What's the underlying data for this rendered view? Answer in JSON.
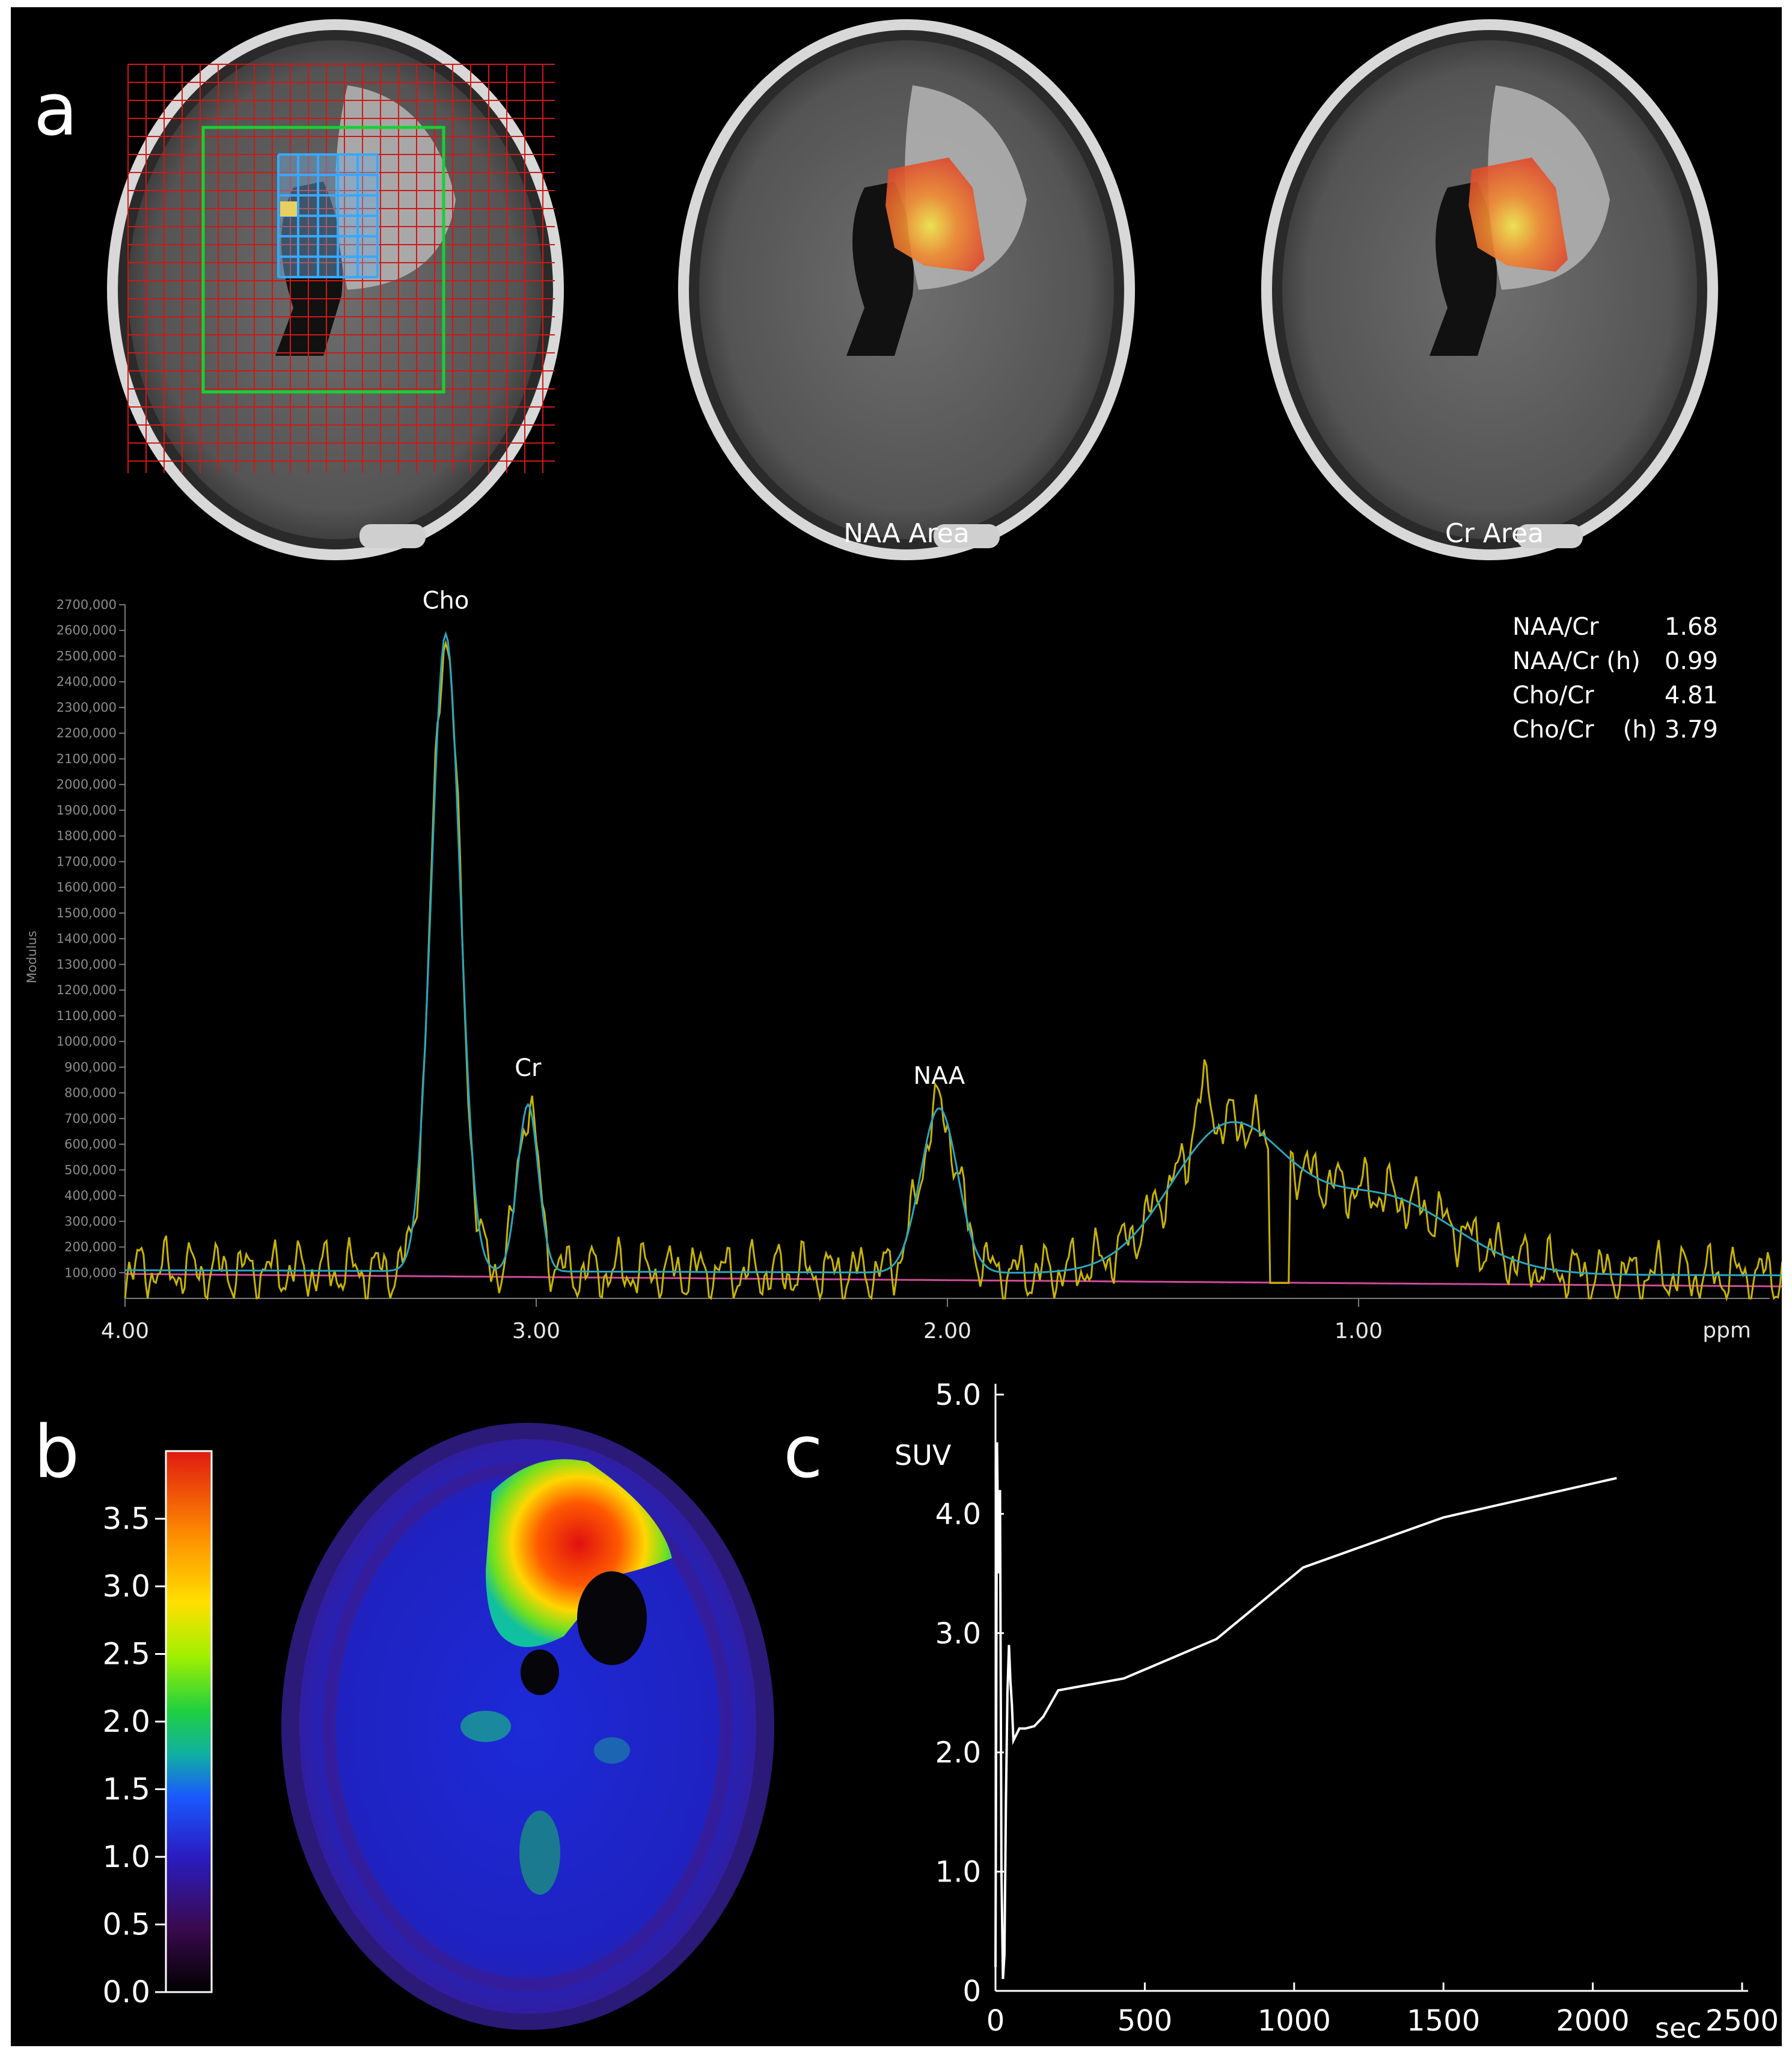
{
  "panel_labels": {
    "a": "a",
    "b": "b",
    "c": "c"
  },
  "images": {
    "voxel_grid_mri": {},
    "naa_map": {
      "caption": "NAA Area"
    },
    "cr_map": {
      "caption": "Cr Area"
    },
    "pet_scan": {}
  },
  "chart_data": [
    {
      "type": "line",
      "id": "mrs-spectrum",
      "ylabel": "Modulus",
      "xunit": "ppm",
      "xlim": [
        4.0,
        0.0
      ],
      "ylim": [
        0,
        2700000
      ],
      "x_ticks": [
        "4.00",
        "3.00",
        "2.00",
        "1.00"
      ],
      "y_ticks": [
        "100,000",
        "200,000",
        "300,000",
        "400,000",
        "500,000",
        "600,000",
        "700,000",
        "800,000",
        "900,000",
        "1000,000",
        "1100,000",
        "1200,000",
        "1300,000",
        "1400,000",
        "1500,000",
        "1600,000",
        "1700,000",
        "1800,000",
        "1900,000",
        "2000,000",
        "2100,000",
        "2200,000",
        "2300,000",
        "2400,000",
        "2500,000",
        "2600,000",
        "2700,000"
      ],
      "peaks": [
        {
          "label": "Cho",
          "ppm": 3.22,
          "value": 2580000
        },
        {
          "label": "Cr",
          "ppm": 3.02,
          "value": 760000
        },
        {
          "label": "NAA",
          "ppm": 2.02,
          "value": 730000
        }
      ],
      "ratios": [
        {
          "label": "NAA/Cr",
          "value": "1.68"
        },
        {
          "label": "NAA/Cr (h)",
          "value": "0.99"
        },
        {
          "label": "Cho/Cr",
          "value": "4.81"
        },
        {
          "label": "Cho/Cr",
          "value": "(h) 3.79"
        }
      ],
      "colors": {
        "measured": "#c8b400",
        "fit": "#2aa6c0",
        "baseline": "#d04a9a"
      }
    },
    {
      "type": "line",
      "id": "suv-time-activity",
      "ylabel": "SUV",
      "xlabel": "sec",
      "xlim": [
        0,
        2500
      ],
      "ylim": [
        0,
        5.0
      ],
      "x_ticks": [
        "0",
        "500",
        "1000",
        "1500",
        "2000",
        "2500"
      ],
      "y_ticks": [
        "0",
        "1.0",
        "2.0",
        "3.0",
        "4.0",
        "5.0"
      ],
      "series": [
        {
          "x": [
            0,
            5,
            10,
            15,
            20,
            25,
            30,
            35,
            40,
            45,
            50,
            55,
            60,
            70,
            80,
            100,
            130,
            160,
            210,
            430,
            740,
            1030,
            1500,
            2080
          ],
          "y": [
            0.2,
            4.6,
            3.5,
            4.2,
            1.0,
            0.1,
            0.3,
            1.6,
            2.5,
            2.9,
            2.6,
            2.4,
            2.1,
            2.15,
            2.2,
            2.2,
            2.22,
            2.3,
            2.52,
            2.62,
            2.95,
            3.55,
            3.97,
            4.3
          ]
        }
      ],
      "color": "#ffffff"
    },
    {
      "type": "heatmap",
      "id": "pet-colorbar",
      "range": [
        0.0,
        3.5
      ],
      "tick_labels": [
        "0.0",
        "0.5",
        "1.0",
        "1.5",
        "2.0",
        "2.5",
        "3.0",
        "3.5"
      ]
    }
  ]
}
